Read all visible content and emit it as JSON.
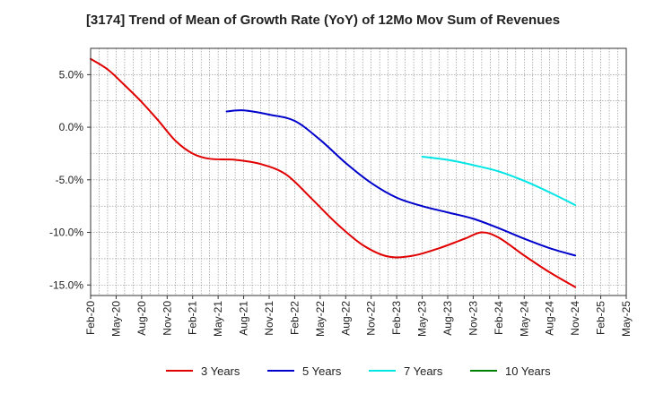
{
  "chart_data": {
    "type": "line",
    "title": "[3174]  Trend of Mean of Growth Rate (YoY) of 12Mo Mov Sum of Revenues",
    "xlabel": "",
    "ylabel": "",
    "grid": true,
    "legend_position": "bottom",
    "x_ticks": [
      "Feb-20",
      "May-20",
      "Aug-20",
      "Nov-20",
      "Feb-21",
      "May-21",
      "Aug-21",
      "Nov-21",
      "Feb-22",
      "May-22",
      "Aug-22",
      "Nov-22",
      "Feb-23",
      "May-23",
      "Aug-23",
      "Nov-23",
      "Feb-24",
      "May-24",
      "Aug-24",
      "Nov-24",
      "Feb-25",
      "May-25"
    ],
    "y_ticks": [
      5.0,
      0.0,
      -5.0,
      -10.0,
      -15.0
    ],
    "y_tick_labels": [
      "5.0%",
      "0.0%",
      "-5.0%",
      "-10.0%",
      "-15.0%"
    ],
    "ylim": [
      -16.0,
      7.5
    ],
    "x_range_months": [
      0,
      63
    ],
    "series": [
      {
        "name": "3 Years",
        "color": "#e00000",
        "points": [
          [
            0,
            6.5
          ],
          [
            2,
            5.5
          ],
          [
            4,
            4.0
          ],
          [
            6,
            2.4
          ],
          [
            8,
            0.6
          ],
          [
            10,
            -1.3
          ],
          [
            12,
            -2.5
          ],
          [
            14,
            -3.0
          ],
          [
            17,
            -3.1
          ],
          [
            20,
            -3.5
          ],
          [
            23,
            -4.5
          ],
          [
            26,
            -6.8
          ],
          [
            29,
            -9.2
          ],
          [
            32,
            -11.2
          ],
          [
            35,
            -12.3
          ],
          [
            38,
            -12.2
          ],
          [
            41,
            -11.5
          ],
          [
            44,
            -10.6
          ],
          [
            46,
            -10.0
          ],
          [
            48,
            -10.5
          ],
          [
            51,
            -12.2
          ],
          [
            54,
            -13.8
          ],
          [
            57,
            -15.2
          ]
        ]
      },
      {
        "name": "5 Years",
        "color": "#0000cc",
        "points": [
          [
            16,
            1.5
          ],
          [
            18,
            1.6
          ],
          [
            21,
            1.2
          ],
          [
            24,
            0.6
          ],
          [
            27,
            -1.2
          ],
          [
            30,
            -3.4
          ],
          [
            33,
            -5.3
          ],
          [
            36,
            -6.7
          ],
          [
            39,
            -7.5
          ],
          [
            42,
            -8.1
          ],
          [
            45,
            -8.7
          ],
          [
            48,
            -9.6
          ],
          [
            51,
            -10.6
          ],
          [
            54,
            -11.5
          ],
          [
            57,
            -12.2
          ]
        ]
      },
      {
        "name": "7 Years",
        "color": "#00e5e5",
        "points": [
          [
            39,
            -2.8
          ],
          [
            42,
            -3.1
          ],
          [
            45,
            -3.6
          ],
          [
            48,
            -4.2
          ],
          [
            51,
            -5.1
          ],
          [
            54,
            -6.2
          ],
          [
            57,
            -7.4
          ]
        ]
      },
      {
        "name": "10 Years",
        "color": "#008000",
        "points": []
      }
    ]
  }
}
